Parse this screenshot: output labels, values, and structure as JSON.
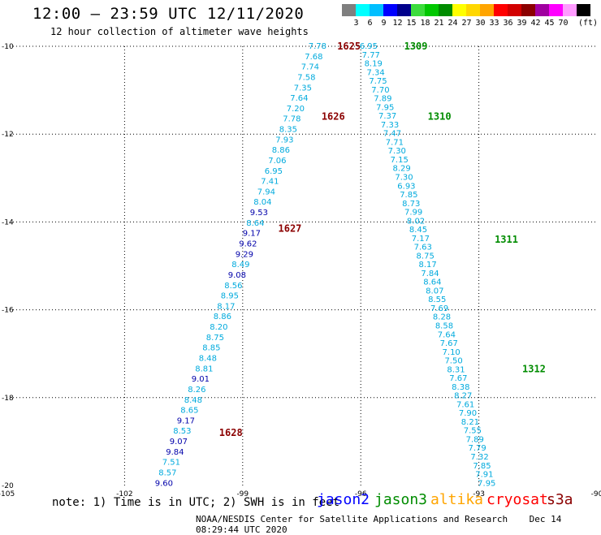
{
  "header": {
    "title": "12:00 – 23:59 UTC 12/11/2020",
    "subtitle": "12 hour collection of altimeter wave heights"
  },
  "color_scale": {
    "unit": "(ft)",
    "bins": [
      {
        "label": "",
        "color": "#7f7f7f"
      },
      {
        "label": "3",
        "color": "#00ffff"
      },
      {
        "label": "6",
        "color": "#00bfff"
      },
      {
        "label": "9",
        "color": "#0000ff"
      },
      {
        "label": "12",
        "color": "#00008b"
      },
      {
        "label": "15",
        "color": "#3cdc3c"
      },
      {
        "label": "18",
        "color": "#00c800"
      },
      {
        "label": "21",
        "color": "#008c00"
      },
      {
        "label": "24",
        "color": "#ffff00"
      },
      {
        "label": "27",
        "color": "#ffd700"
      },
      {
        "label": "30",
        "color": "#ffa500"
      },
      {
        "label": "33",
        "color": "#ff0000"
      },
      {
        "label": "36",
        "color": "#d20000"
      },
      {
        "label": "39",
        "color": "#8b0000"
      },
      {
        "label": "42",
        "color": "#a000a0"
      },
      {
        "label": "45",
        "color": "#ff00ff"
      },
      {
        "label": "70",
        "color": "#ff9bff"
      },
      {
        "label": "",
        "color": "#000000"
      }
    ]
  },
  "colors": {
    "low_wave": "#00aadd",
    "mid_wave": "#0000aa",
    "jason2": "#0000ff",
    "jason3": "#008c00",
    "altika": "#ffa500",
    "cryosat": "#ff0000",
    "s3a": "#8b0000"
  },
  "map": {
    "lon_range": [
      -105,
      -90
    ],
    "lat_range": [
      -20,
      -10
    ],
    "lon_ticks": [
      "-105",
      "-102",
      "-99",
      "-96",
      "-93",
      "-90"
    ],
    "lat_ticks": [
      "-10",
      "-12",
      "-14",
      "-16",
      "-18",
      "-20"
    ]
  },
  "tracks": [
    {
      "satellite": "s3a",
      "start": [
        -97.1,
        -10.0
      ],
      "end": [
        -101.0,
        -19.95
      ],
      "values": [
        "7.78",
        "7.68",
        "7.74",
        "7.58",
        "7.35",
        "7.64",
        "7.20",
        "7.78",
        "8.35",
        "7.93",
        "8.86",
        "7.06",
        "6.95",
        "7.41",
        "7.94",
        "8.04",
        "9.53",
        "8.64",
        "9.17",
        "9.62",
        "9.29",
        "8.49",
        "9.08",
        "8.56",
        "8.95",
        "8.17",
        "8.86",
        "8.20",
        "8.75",
        "8.85",
        "8.48",
        "8.81",
        "9.01",
        "8.26",
        "8.48",
        "8.65",
        "9.17",
        "8.53",
        "9.07",
        "9.84",
        "7.51",
        "8.57",
        "9.60"
      ],
      "labels": [
        {
          "text": "1625",
          "pos": [
            -96.3,
            -10.0
          ]
        },
        {
          "text": "1626",
          "pos": [
            -96.7,
            -11.6
          ]
        },
        {
          "text": "1627",
          "pos": [
            -97.8,
            -14.15
          ]
        },
        {
          "text": "1628",
          "pos": [
            -99.3,
            -18.8
          ]
        }
      ]
    },
    {
      "satellite": "jason3",
      "start": [
        -95.8,
        -10.0
      ],
      "end": [
        -92.8,
        -19.95
      ],
      "values": [
        "6.95",
        "7.77",
        "8.19",
        "7.34",
        "7.75",
        "7.70",
        "7.89",
        "7.95",
        "7.37",
        "7.33",
        "7.47",
        "7.71",
        "7.30",
        "7.15",
        "8.29",
        "7.30",
        "6.93",
        "7.85",
        "8.73",
        "7.99",
        "8.02",
        "8.45",
        "7.17",
        "7.63",
        "8.75",
        "8.17",
        "7.84",
        "8.64",
        "8.07",
        "8.55",
        "7.69",
        "8.28",
        "8.58",
        "7.64",
        "7.67",
        "7.10",
        "7.50",
        "8.31",
        "7.67",
        "8.38",
        "8.27",
        "7.61",
        "7.90",
        "8.21",
        "7.55",
        "7.89",
        "7.79",
        "7.32",
        "7.85",
        "7.91",
        "7.95"
      ],
      "labels": [
        {
          "text": "1309",
          "pos": [
            -94.6,
            -10.0
          ]
        },
        {
          "text": "1310",
          "pos": [
            -94.0,
            -11.6
          ]
        },
        {
          "text": "1311",
          "pos": [
            -92.3,
            -14.4
          ]
        },
        {
          "text": "1312",
          "pos": [
            -91.6,
            -17.35
          ]
        }
      ]
    }
  ],
  "legend": {
    "note": "note:  1) Time is in UTC;  2) SWH is in feet",
    "missions": [
      "jason2",
      "jason3",
      "altika",
      "cryosat",
      "s3a"
    ]
  },
  "footer": {
    "credit": "NOAA/NESDIS Center for Satellite Applications and Research",
    "timestamp": "Dec 14 08:29:44 UTC 2020"
  }
}
